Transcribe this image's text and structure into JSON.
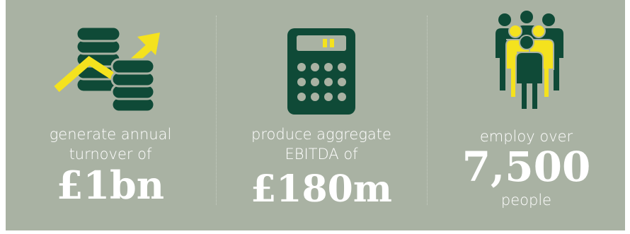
{
  "colors": {
    "background": "#a9b2a3",
    "dark_green": "#0f4a37",
    "yellow": "#f4e21e",
    "text": "#ffffff"
  },
  "stats": [
    {
      "icon": "coins-growth-icon",
      "line1": "generate annual",
      "line2": "turnover of",
      "value": "£1bn"
    },
    {
      "icon": "calculator-icon",
      "line1": "produce aggregate",
      "line2": "EBITDA of",
      "value": "£180m"
    },
    {
      "icon": "people-group-icon",
      "line1": "employ over",
      "value": "7,500",
      "line2": "people"
    }
  ]
}
